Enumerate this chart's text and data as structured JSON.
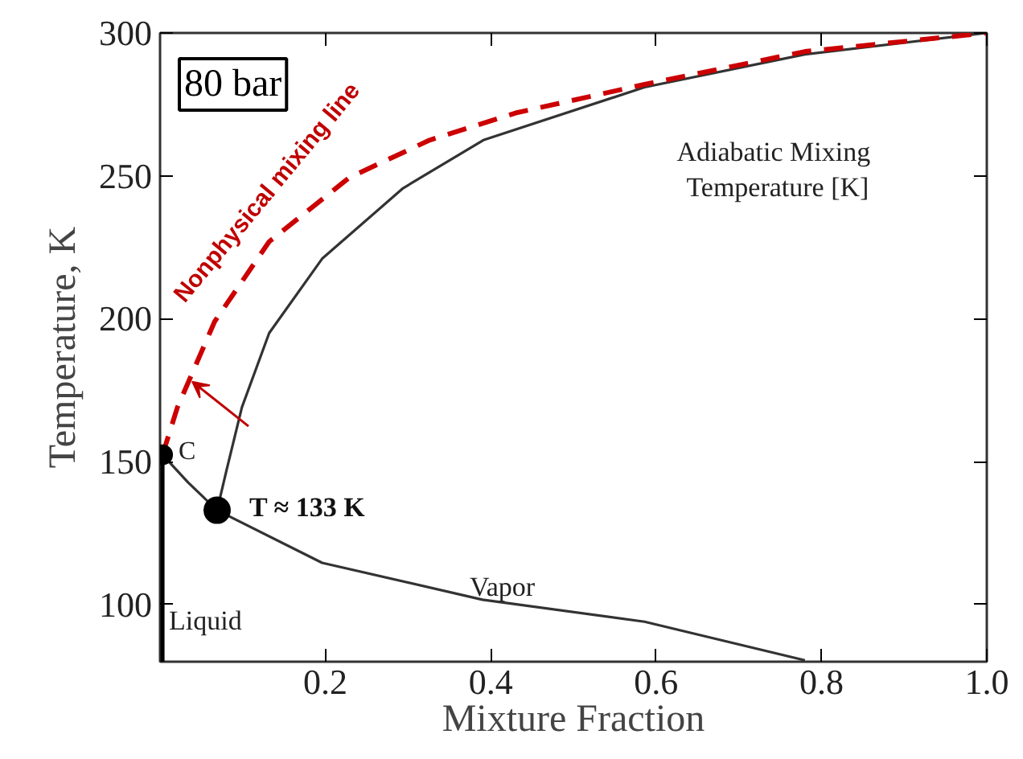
{
  "chart_data": {
    "type": "line",
    "xlabel": "Mixture Fraction",
    "ylabel": "Temperature, K",
    "xlim": [
      0,
      1.0
    ],
    "ylim": [
      80,
      300
    ],
    "xticks": [
      0.2,
      0.4,
      0.6,
      0.8,
      {
        "value": 1.0,
        "label": "1.0"
      }
    ],
    "yticks": [
      100,
      150,
      200,
      250,
      300
    ],
    "grid": false,
    "series": [
      {
        "color": "#333333",
        "line_style": "solid",
        "x": [
          0.069,
          0.08,
          0.099,
          0.132,
          0.196,
          0.294,
          0.391,
          0.586,
          0.78,
          1.0
        ],
        "values": [
          133,
          146.5,
          169,
          195,
          221,
          245.7,
          262.5,
          281,
          292.5,
          300
        ]
      },
      {
        "color": "#cc0000",
        "line_style": "dashed",
        "x": [
          0.003,
          0.021,
          0.066,
          0.132,
          0.229,
          0.326,
          0.43,
          0.586,
          0.78,
          1.0
        ],
        "values": [
          152.4,
          169,
          199,
          227,
          249.4,
          262.5,
          272,
          282,
          293.5,
          300
        ]
      },
      {
        "color": "#333333",
        "line_style": "solid",
        "x": [
          0.003,
          0.034,
          0.069,
          0.196,
          0.39,
          0.586,
          0.78
        ],
        "values": [
          152.4,
          142.7,
          133,
          114.6,
          101.7,
          94,
          80.5
        ]
      },
      {
        "color": "#000000",
        "line_style": "solid",
        "x": [
          0.003,
          0.003
        ],
        "values": [
          152.4,
          80
        ]
      },
      {
        "type": "scatter",
        "marker": "circle",
        "color": "#000000",
        "x": [
          0.003,
          0.069
        ],
        "values": [
          152.4,
          133
        ]
      }
    ],
    "annotations": [
      "80 bar",
      {
        "text": "Nonphysical mixing line",
        "x": 0.066,
        "y": 199
      },
      {
        "text": "Adiabatic Mixing\nTemperature [K]",
        "x": 0.586,
        "y": 281
      },
      {
        "text": "C",
        "x": 0.003,
        "y": 152.4
      },
      {
        "text": "T ≈ 133 K",
        "x": 0.069,
        "y": 133
      },
      {
        "text": "Liquid",
        "x": 0.003,
        "y": 100
      },
      {
        "text": "Vapor",
        "x": 0.39,
        "y": 101.7
      }
    ]
  }
}
